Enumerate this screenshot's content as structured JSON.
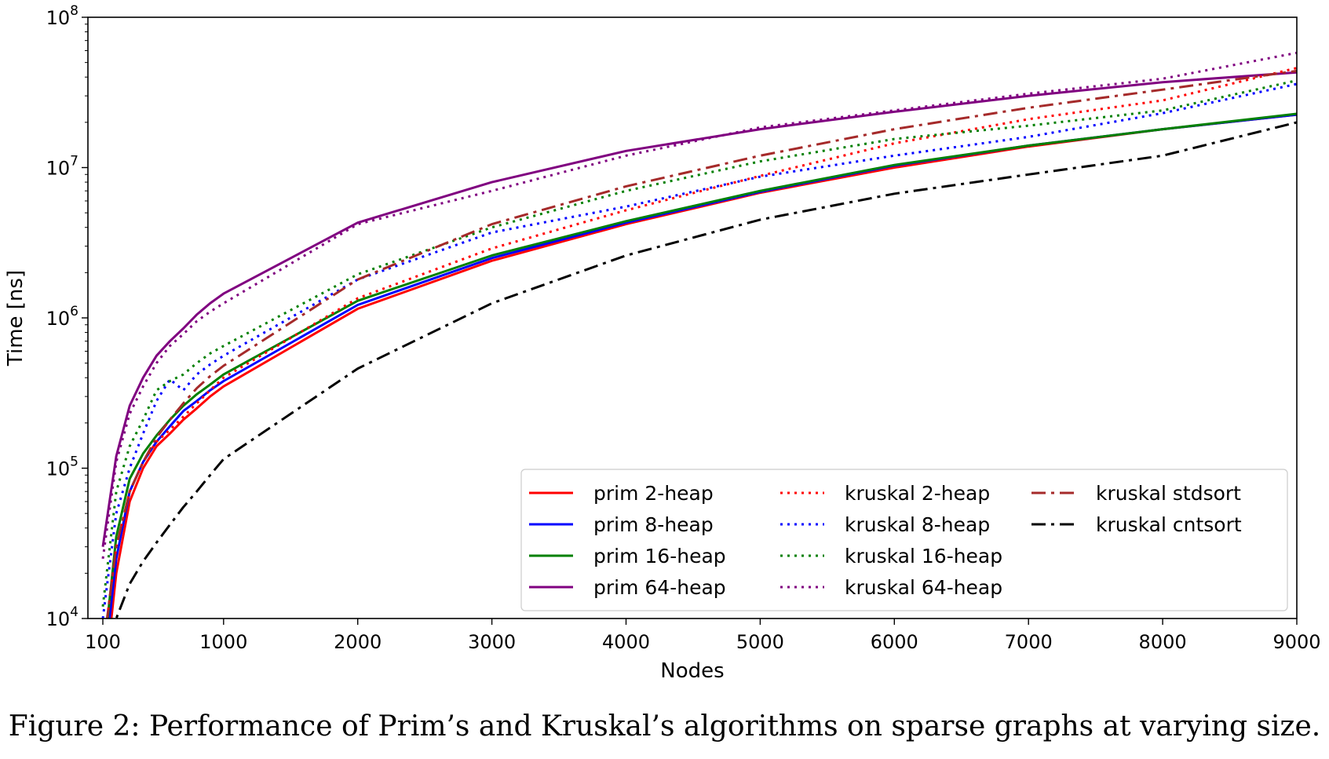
{
  "caption": "Figure 2:  Performance of Prim’s and Kruskal’s algorithms on sparse graphs at varying size.",
  "chart_data": {
    "type": "line",
    "title": "",
    "xlabel": "Nodes",
    "ylabel": "Time [ns]",
    "xlim": [
      100,
      9000
    ],
    "ylim": [
      10000,
      100000000
    ],
    "yscale": "log",
    "x_ticks": [
      100,
      1000,
      2000,
      3000,
      4000,
      5000,
      6000,
      7000,
      8000,
      9000
    ],
    "y_ticks": [
      {
        "base": "10",
        "exp": "4",
        "value": 10000
      },
      {
        "base": "10",
        "exp": "5",
        "value": 100000
      },
      {
        "base": "10",
        "exp": "6",
        "value": 1000000
      },
      {
        "base": "10",
        "exp": "7",
        "value": 10000000
      },
      {
        "base": "10",
        "exp": "8",
        "value": 100000000
      }
    ],
    "grid": false,
    "legend_position": "lower-right",
    "x": [
      100,
      200,
      300,
      400,
      500,
      600,
      700,
      800,
      900,
      1000,
      2000,
      3000,
      4000,
      5000,
      6000,
      7000,
      8000,
      9000
    ],
    "series": [
      {
        "name": "prim 2-heap",
        "color": "#ff0000",
        "style": "solid",
        "values": [
          3000,
          20000,
          60000,
          100000,
          140000,
          170000,
          210000,
          250000,
          300000,
          350000,
          1150000,
          2400000,
          4200000,
          6800000,
          10000000,
          13800000,
          18000000,
          22500000
        ]
      },
      {
        "name": "prim 8-heap",
        "color": "#0000ff",
        "style": "solid",
        "values": [
          4000,
          25000,
          70000,
          110000,
          150000,
          190000,
          240000,
          280000,
          330000,
          380000,
          1220000,
          2500000,
          4300000,
          6900000,
          10300000,
          14000000,
          18000000,
          22500000
        ]
      },
      {
        "name": "prim 16-heap",
        "color": "#008000",
        "style": "solid",
        "values": [
          5000,
          35000,
          85000,
          125000,
          165000,
          210000,
          260000,
          310000,
          360000,
          420000,
          1300000,
          2600000,
          4400000,
          7000000,
          10400000,
          14000000,
          18000000,
          22800000
        ]
      },
      {
        "name": "prim 64-heap",
        "color": "#800080",
        "style": "solid",
        "values": [
          30000,
          120000,
          260000,
          400000,
          560000,
          700000,
          850000,
          1050000,
          1250000,
          1450000,
          4300000,
          8000000,
          12900000,
          18000000,
          23500000,
          30000000,
          37000000,
          43000000
        ]
      },
      {
        "name": "kruskal 2-heap",
        "color": "#ff0000",
        "style": "dotted",
        "values": [
          6000,
          30000,
          70000,
          110000,
          150000,
          180000,
          220000,
          270000,
          330000,
          400000,
          1350000,
          2900000,
          5200000,
          8800000,
          14500000,
          21000000,
          28000000,
          46000000
        ]
      },
      {
        "name": "kruskal 8-heap",
        "color": "#0000ff",
        "style": "dotted",
        "values": [
          10000,
          50000,
          100000,
          170000,
          280000,
          390000,
          330000,
          420000,
          490000,
          560000,
          1800000,
          3700000,
          5500000,
          8700000,
          12000000,
          16000000,
          23000000,
          36000000
        ]
      },
      {
        "name": "kruskal 16-heap",
        "color": "#008000",
        "style": "dotted",
        "values": [
          12000,
          70000,
          140000,
          210000,
          330000,
          380000,
          420000,
          500000,
          580000,
          650000,
          1950000,
          4000000,
          7000000,
          11000000,
          15500000,
          19000000,
          24000000,
          38000000
        ]
      },
      {
        "name": "kruskal 64-heap",
        "color": "#800080",
        "style": "dotted",
        "values": [
          25000,
          110000,
          230000,
          350000,
          500000,
          650000,
          780000,
          950000,
          1100000,
          1250000,
          4200000,
          7000000,
          12000000,
          18500000,
          24000000,
          31000000,
          39000000,
          58000000
        ]
      },
      {
        "name": "kruskal stdsort",
        "color": "#a52a2a",
        "style": "dashdot",
        "values": [
          6000,
          30000,
          70000,
          110000,
          160000,
          210000,
          270000,
          340000,
          410000,
          480000,
          1800000,
          4200000,
          7500000,
          12000000,
          18000000,
          25000000,
          33000000,
          44000000
        ]
      },
      {
        "name": "kruskal cntsort",
        "color": "#000000",
        "style": "dashdot",
        "values": [
          5000,
          10000,
          17000,
          24000,
          32000,
          42000,
          55000,
          70000,
          90000,
          115000,
          460000,
          1250000,
          2600000,
          4500000,
          6700000,
          9000000,
          12000000,
          20000000
        ]
      }
    ]
  }
}
